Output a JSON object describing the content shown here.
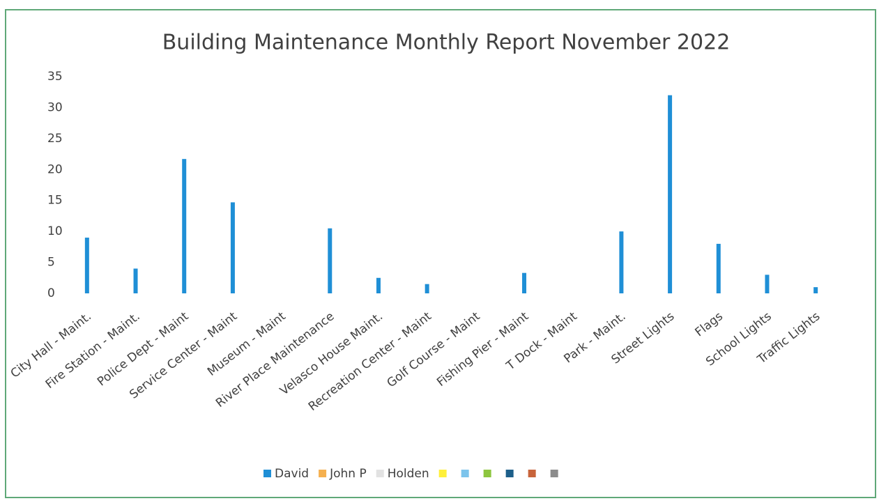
{
  "chart_data": {
    "type": "bar",
    "title": "Building Maintenance Monthly Report November 2022",
    "categories": [
      "City Hall - Maint.",
      "Fire Station - Maint.",
      "Police Dept - Maint",
      "Service Center - Maint",
      "Museum - Maint",
      "River Place Maintenance",
      "Velasco House Maint.",
      "Recreation Center - Maint",
      "Golf Course - Maint",
      "Fishing Pier - Maint",
      "T Dock - Maint",
      "Park - Maint.",
      "Street Lights",
      "Flags",
      "School Lights",
      "Traffic Lights"
    ],
    "series": [
      {
        "name": "David",
        "color": "#1f8fd6",
        "values": [
          9,
          4,
          21.7,
          14.7,
          0,
          10.5,
          2.5,
          1.5,
          0,
          3.3,
          0,
          10,
          32,
          8,
          3,
          1
        ]
      },
      {
        "name": "John P",
        "color": "#f5b04f",
        "values": [
          0,
          0,
          0,
          0,
          0,
          0,
          0,
          0,
          0,
          0,
          0,
          0,
          0,
          0,
          0,
          0
        ]
      },
      {
        "name": "Holden",
        "color": "#e2e2e2",
        "values": [
          0,
          0,
          0,
          0,
          0,
          0,
          0,
          0,
          0,
          0,
          0,
          0,
          0,
          0,
          0,
          0
        ]
      },
      {
        "color": "#fff03a"
      },
      {
        "color": "#7cc4ec"
      },
      {
        "color": "#8dc63f"
      },
      {
        "color": "#1d5f8a"
      },
      {
        "color": "#c8643b"
      },
      {
        "color": "#8c8c8c"
      }
    ],
    "ylim": [
      0,
      35
    ],
    "yticks": [
      0,
      5,
      10,
      15,
      20,
      25,
      30,
      35
    ],
    "grid": false,
    "legend": "bottom"
  }
}
